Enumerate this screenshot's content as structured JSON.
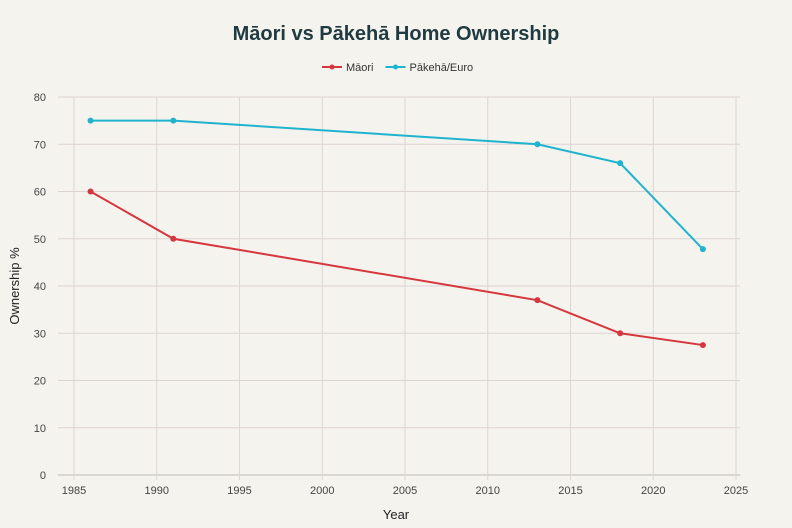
{
  "chart_data": {
    "type": "line",
    "title": "Māori vs Pākehā Home Ownership",
    "xlabel": "Year",
    "ylabel": "Ownership %",
    "xlim": [
      1985,
      2025
    ],
    "ylim": [
      0,
      80
    ],
    "xticks": [
      1985,
      1990,
      1995,
      2000,
      2005,
      2010,
      2015,
      2020,
      2025
    ],
    "yticks": [
      0,
      10,
      20,
      30,
      40,
      50,
      60,
      70,
      80
    ],
    "grid": true,
    "legend_position": "top-center",
    "series": [
      {
        "name": "Māori",
        "color": "#d6363d",
        "x": [
          1986,
          1991,
          2013,
          2018,
          2023
        ],
        "y": [
          60,
          50,
          37,
          30,
          27.5
        ]
      },
      {
        "name": "Pākehā/Euro",
        "color": "#1fb3cd",
        "x": [
          1986,
          1991,
          2013,
          2018,
          2023
        ],
        "y": [
          75,
          75,
          70,
          66,
          47.8
        ]
      }
    ]
  }
}
